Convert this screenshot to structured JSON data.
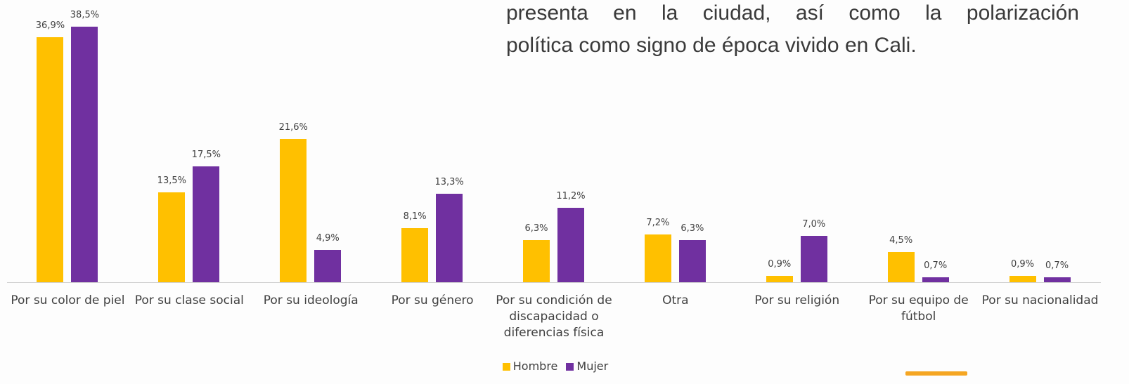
{
  "text": [
    "presenta en la ciudad, así como la polarización",
    "política como signo de época vivido en Cali."
  ],
  "chart_data": {
    "type": "bar",
    "categories": [
      "Por su color de piel",
      "Por su clase social",
      "Por su ideología",
      "Por su género",
      "Por su condición de discapacidad o diferencias física",
      "Otra",
      "Por su religión",
      "Por su equipo de fútbol",
      "Por su nacionalidad"
    ],
    "series": [
      {
        "name": "Hombre",
        "color": "#FFC000",
        "values": [
          36.9,
          13.5,
          21.6,
          8.1,
          6.3,
          7.2,
          0.9,
          4.5,
          0.9
        ],
        "value_labels": [
          "36,9%",
          "13,5%",
          "21,6%",
          "8,1%",
          "6,3%",
          "7,2%",
          "0,9%",
          "4,5%",
          "0,9%"
        ]
      },
      {
        "name": "Mujer",
        "color": "#7030A0",
        "values": [
          38.5,
          17.5,
          4.9,
          13.3,
          11.2,
          6.3,
          7.0,
          0.7,
          0.7
        ],
        "value_labels": [
          "38,5%",
          "17,5%",
          "4,9%",
          "13,3%",
          "11,2%",
          "6,3%",
          "7,0%",
          "0,7%",
          "0,7%"
        ]
      }
    ],
    "ylim": [
      0,
      40
    ],
    "legend": "bottom"
  }
}
